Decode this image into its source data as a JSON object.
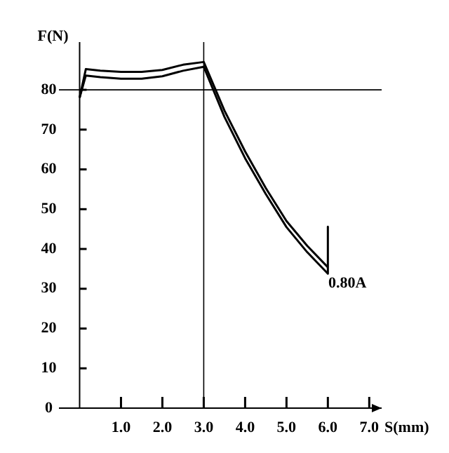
{
  "chart_data": {
    "type": "line",
    "xlabel": "S(mm)",
    "ylabel": "F(N)",
    "xlim": [
      -0.5,
      7.3
    ],
    "ylim": [
      0,
      92
    ],
    "xticks": [
      {
        "value": 1,
        "label": "1.0"
      },
      {
        "value": 2,
        "label": "2.0"
      },
      {
        "value": 3,
        "label": "3.0"
      },
      {
        "value": 4,
        "label": "4.0"
      },
      {
        "value": 5,
        "label": "5.0"
      },
      {
        "value": 6,
        "label": "6.0"
      },
      {
        "value": 7,
        "label": "7.0"
      }
    ],
    "yticks": [
      0,
      10,
      20,
      30,
      40,
      50,
      60,
      70,
      80
    ],
    "series": [
      {
        "color": "#000000",
        "x": [
          0,
          0.15,
          0.5,
          1,
          1.5,
          2,
          2.5,
          3,
          3.5,
          4,
          4.5,
          5,
          5.5,
          6
        ],
        "values": [
          78,
          85.2,
          84.8,
          84.5,
          84.5,
          85.0,
          86.3,
          87.0,
          74.8,
          64.5,
          55.3,
          47.0,
          40.8,
          35.4
        ]
      },
      {
        "color": "#000000",
        "x": [
          0,
          0.15,
          0.5,
          1,
          1.5,
          2,
          2.5,
          3,
          3.5,
          4,
          4.5,
          5,
          5.5,
          6
        ],
        "values": [
          78,
          83.6,
          83.2,
          82.8,
          82.8,
          83.4,
          84.8,
          85.8,
          73.2,
          62.8,
          53.8,
          45.5,
          39.2,
          33.8
        ]
      },
      {
        "color": "#000000",
        "x": [
          6,
          6
        ],
        "values": [
          45.6,
          33.8
        ]
      }
    ],
    "ref_lines": [
      {
        "axis": "x",
        "value": 3
      },
      {
        "axis": "y",
        "value": 80
      }
    ],
    "annotations": [
      "0.80A"
    ],
    "legend": false,
    "marker": "none",
    "line_style": "solid"
  }
}
